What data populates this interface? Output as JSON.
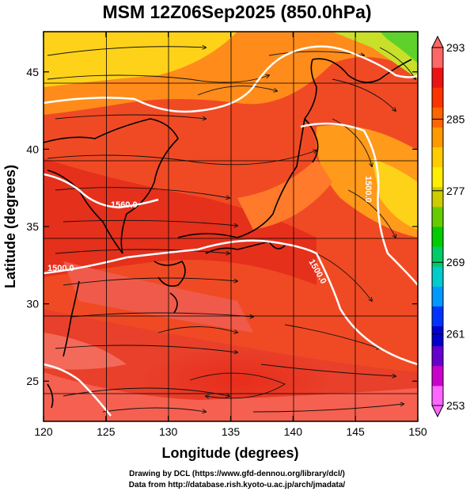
{
  "title": "MSM 12Z06Sep2025 (850.0hPa)",
  "map": {
    "xlabel": "Longitude (degrees)",
    "ylabel": "Latitude  (degrees)",
    "x_ticks": [
      120,
      125,
      130,
      135,
      140,
      145,
      150
    ],
    "y_ticks": [
      25,
      30,
      35,
      40,
      45
    ],
    "x_range": [
      120,
      150
    ],
    "y_range": [
      22.4,
      47.6
    ],
    "field": "temperature",
    "overlay": "streamlines",
    "contours": [
      {
        "label": "1560.0"
      },
      {
        "label": "1500.0"
      },
      {
        "label": "1500.0"
      },
      {
        "label": "1500.0"
      }
    ]
  },
  "colorbar": {
    "min": 253,
    "max": 293,
    "tick_labels": [
      293,
      285,
      277,
      269,
      261,
      253
    ],
    "colors": [
      "#ff66ff",
      "#cc00cc",
      "#6600cc",
      "#0000cc",
      "#0033ff",
      "#0099ff",
      "#00cccc",
      "#00cc66",
      "#00cc00",
      "#66cc00",
      "#cccc00",
      "#ffee00",
      "#ffcc00",
      "#ff9900",
      "#ff6600",
      "#ff3300",
      "#ee1111",
      "#ff6666"
    ]
  },
  "credits": {
    "line1": "Drawing by DCL (https://www.gfd-dennou.org/library/dcl/)",
    "line2": "Data from http://database.rish.kyoto-u.ac.jp/arch/jmadata/"
  }
}
